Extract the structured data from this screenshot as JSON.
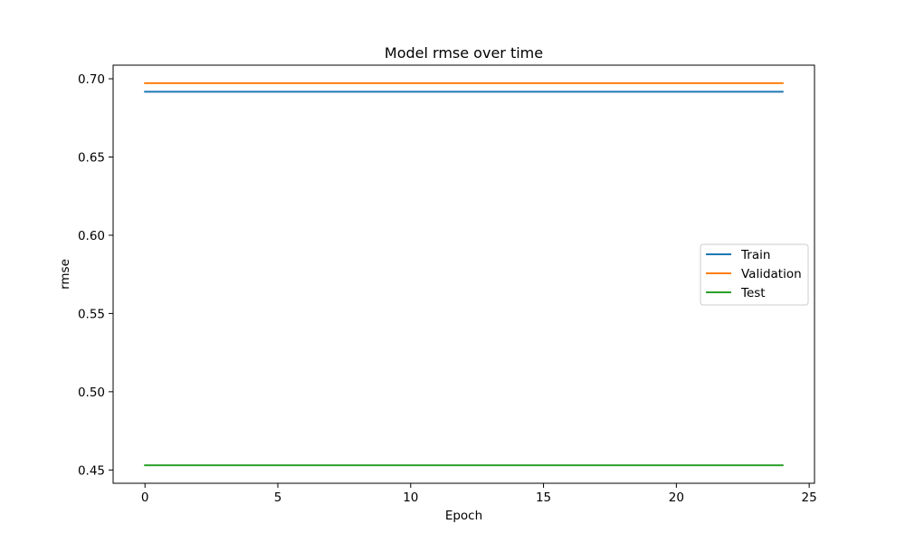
{
  "chart_data": {
    "type": "line",
    "title": "Model rmse over time",
    "xlabel": "Epoch",
    "ylabel": "rmse",
    "xlim": [
      -1.2,
      25.2
    ],
    "ylim": [
      0.4415,
      0.7087
    ],
    "xticks": [
      0,
      5,
      10,
      15,
      20,
      25
    ],
    "yticks": [
      0.45,
      0.5,
      0.55,
      0.6,
      0.65,
      0.7
    ],
    "ytick_labels": [
      "0.45",
      "0.50",
      "0.55",
      "0.60",
      "0.65",
      "0.70"
    ],
    "x": [
      0,
      1,
      2,
      3,
      4,
      5,
      6,
      7,
      8,
      9,
      10,
      11,
      12,
      13,
      14,
      15,
      16,
      17,
      18,
      19,
      20,
      21,
      22,
      23,
      24
    ],
    "series": [
      {
        "name": "Train",
        "color": "#1f77b4",
        "values": [
          0.6917,
          0.6917,
          0.6917,
          0.6917,
          0.6917,
          0.6917,
          0.6917,
          0.6917,
          0.6917,
          0.6917,
          0.6917,
          0.6917,
          0.6917,
          0.6917,
          0.6917,
          0.6917,
          0.6917,
          0.6917,
          0.6917,
          0.6917,
          0.6917,
          0.6917,
          0.6917,
          0.6917,
          0.6917
        ]
      },
      {
        "name": "Validation",
        "color": "#ff7f0e",
        "values": [
          0.6972,
          0.6972,
          0.6972,
          0.6972,
          0.6972,
          0.6972,
          0.6972,
          0.6972,
          0.6972,
          0.6972,
          0.6972,
          0.6972,
          0.6972,
          0.6972,
          0.6972,
          0.6972,
          0.6972,
          0.6972,
          0.6972,
          0.6972,
          0.6972,
          0.6972,
          0.6972,
          0.6972,
          0.6972
        ]
      },
      {
        "name": "Test",
        "color": "#2ca02c",
        "values": [
          0.453,
          0.453,
          0.453,
          0.453,
          0.453,
          0.453,
          0.453,
          0.453,
          0.453,
          0.453,
          0.453,
          0.453,
          0.453,
          0.453,
          0.453,
          0.453,
          0.453,
          0.453,
          0.453,
          0.453,
          0.453,
          0.453,
          0.453,
          0.453,
          0.453
        ]
      }
    ],
    "grid": false,
    "legend_position": "center-right"
  }
}
